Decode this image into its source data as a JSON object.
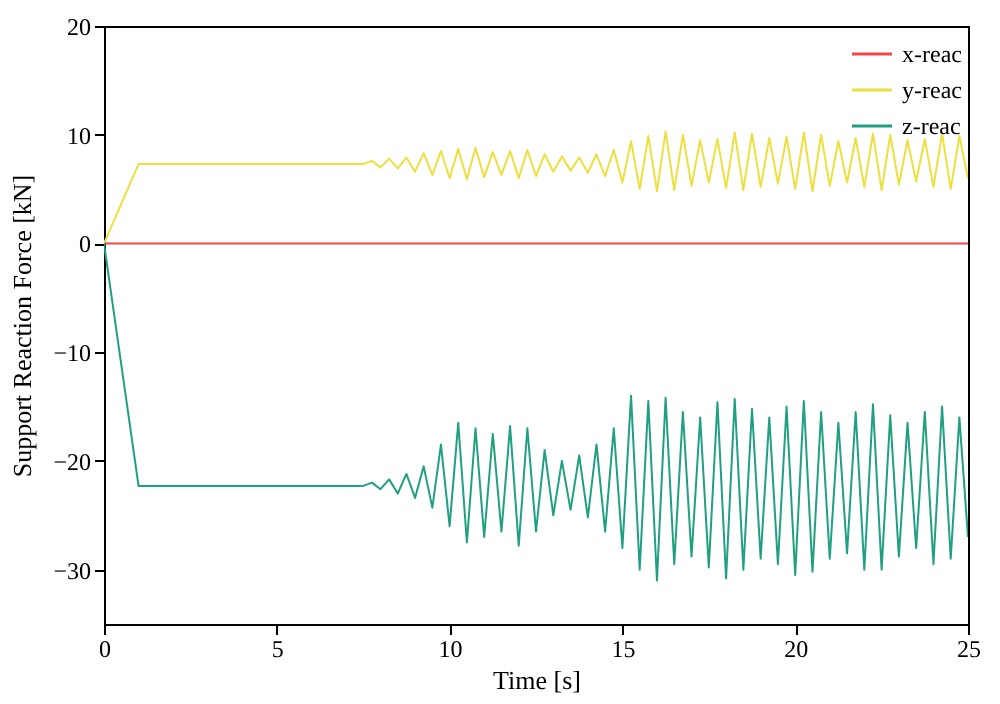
{
  "chart_data": {
    "type": "line",
    "xlabel": "Time [s]",
    "ylabel": "Support Reaction Force [kN]",
    "x": [
      0,
      1,
      7.5,
      7.75,
      8,
      8.25,
      8.5,
      8.75,
      9,
      9.25,
      9.5,
      9.75,
      10,
      10.25,
      10.5,
      10.75,
      11,
      11.25,
      11.5,
      11.75,
      12,
      12.25,
      12.5,
      12.75,
      13,
      13.25,
      13.5,
      13.75,
      14,
      14.25,
      14.5,
      14.75,
      15,
      15.25,
      15.5,
      15.75,
      16,
      16.25,
      16.5,
      16.75,
      17,
      17.25,
      17.5,
      17.75,
      18,
      18.25,
      18.5,
      18.75,
      19,
      19.25,
      19.5,
      19.75,
      20,
      20.25,
      20.5,
      20.75,
      21,
      21.25,
      21.5,
      21.75,
      22,
      22.25,
      22.5,
      22.75,
      23,
      23.25,
      23.5,
      23.75,
      24,
      24.25,
      24.5,
      24.75,
      25
    ],
    "series": [
      {
        "name": "x-reac",
        "color": "#f04848",
        "values": [
          0,
          0,
          0,
          0,
          0,
          0,
          0,
          0,
          0,
          0,
          0,
          0,
          0,
          0,
          0,
          0,
          0,
          0,
          0,
          0,
          0,
          0,
          0,
          0,
          0,
          0,
          0,
          0,
          0,
          0,
          0,
          0,
          0,
          0,
          0,
          0,
          0,
          0,
          0,
          0,
          0,
          0,
          0,
          0,
          0,
          0,
          0,
          0,
          0,
          0,
          0,
          0,
          0,
          0,
          0,
          0,
          0,
          0,
          0,
          0,
          0,
          0,
          0,
          0,
          0,
          0,
          0,
          0,
          0,
          0,
          0,
          0,
          0
        ]
      },
      {
        "name": "y-reac",
        "color": "#ece040",
        "values": [
          0,
          7.3,
          7.3,
          7.6,
          7.0,
          7.8,
          6.9,
          7.9,
          6.6,
          8.3,
          6.3,
          8.5,
          6.0,
          8.7,
          5.9,
          8.8,
          6.1,
          8.4,
          6.3,
          8.5,
          6.0,
          8.6,
          6.2,
          8.2,
          6.6,
          8.0,
          6.7,
          7.9,
          6.5,
          8.2,
          6.2,
          8.6,
          5.6,
          9.4,
          5.0,
          9.9,
          4.8,
          10.3,
          4.9,
          10.0,
          5.3,
          9.5,
          5.6,
          9.6,
          5.1,
          10.2,
          4.9,
          10.1,
          5.2,
          9.7,
          5.5,
          9.8,
          5.0,
          10.2,
          4.8,
          10.0,
          5.3,
          9.4,
          5.6,
          9.7,
          5.2,
          10.1,
          4.9,
          10.0,
          5.4,
          9.5,
          5.7,
          9.6,
          5.2,
          10.1,
          5.0,
          9.9,
          6.0
        ]
      },
      {
        "name": "z-reac",
        "color": "#20a080",
        "values": [
          0,
          -22.3,
          -22.3,
          -22.0,
          -22.6,
          -21.7,
          -23.0,
          -21.2,
          -23.4,
          -20.5,
          -24.3,
          -18.5,
          -26.0,
          -16.5,
          -27.5,
          -17.0,
          -27.0,
          -17.5,
          -26.5,
          -16.8,
          -27.8,
          -17.0,
          -26.5,
          -19.0,
          -25.0,
          -20.0,
          -24.5,
          -19.5,
          -25.2,
          -18.5,
          -26.5,
          -17.0,
          -28.0,
          -14.0,
          -30.0,
          -14.5,
          -31.0,
          -14.2,
          -29.5,
          -15.5,
          -28.8,
          -16.0,
          -29.8,
          -14.6,
          -30.8,
          -14.3,
          -30.0,
          -15.2,
          -29.0,
          -16.0,
          -29.5,
          -15.0,
          -30.5,
          -14.5,
          -30.2,
          -15.5,
          -29.0,
          -16.5,
          -28.5,
          -15.5,
          -30.0,
          -14.8,
          -30.0,
          -15.8,
          -28.8,
          -16.5,
          -28.0,
          -15.5,
          -29.5,
          -15.0,
          -29.0,
          -16.0,
          -27.0
        ]
      }
    ],
    "xlim": [
      0,
      25
    ],
    "xticks": [
      0,
      5,
      10,
      15,
      20,
      25
    ],
    "ylim": [
      -35,
      20
    ],
    "yticks": [
      -30,
      -20,
      -10,
      0,
      10,
      20
    ],
    "legend": "top right",
    "marker": "none",
    "line_style": "solid",
    "grid": false
  }
}
